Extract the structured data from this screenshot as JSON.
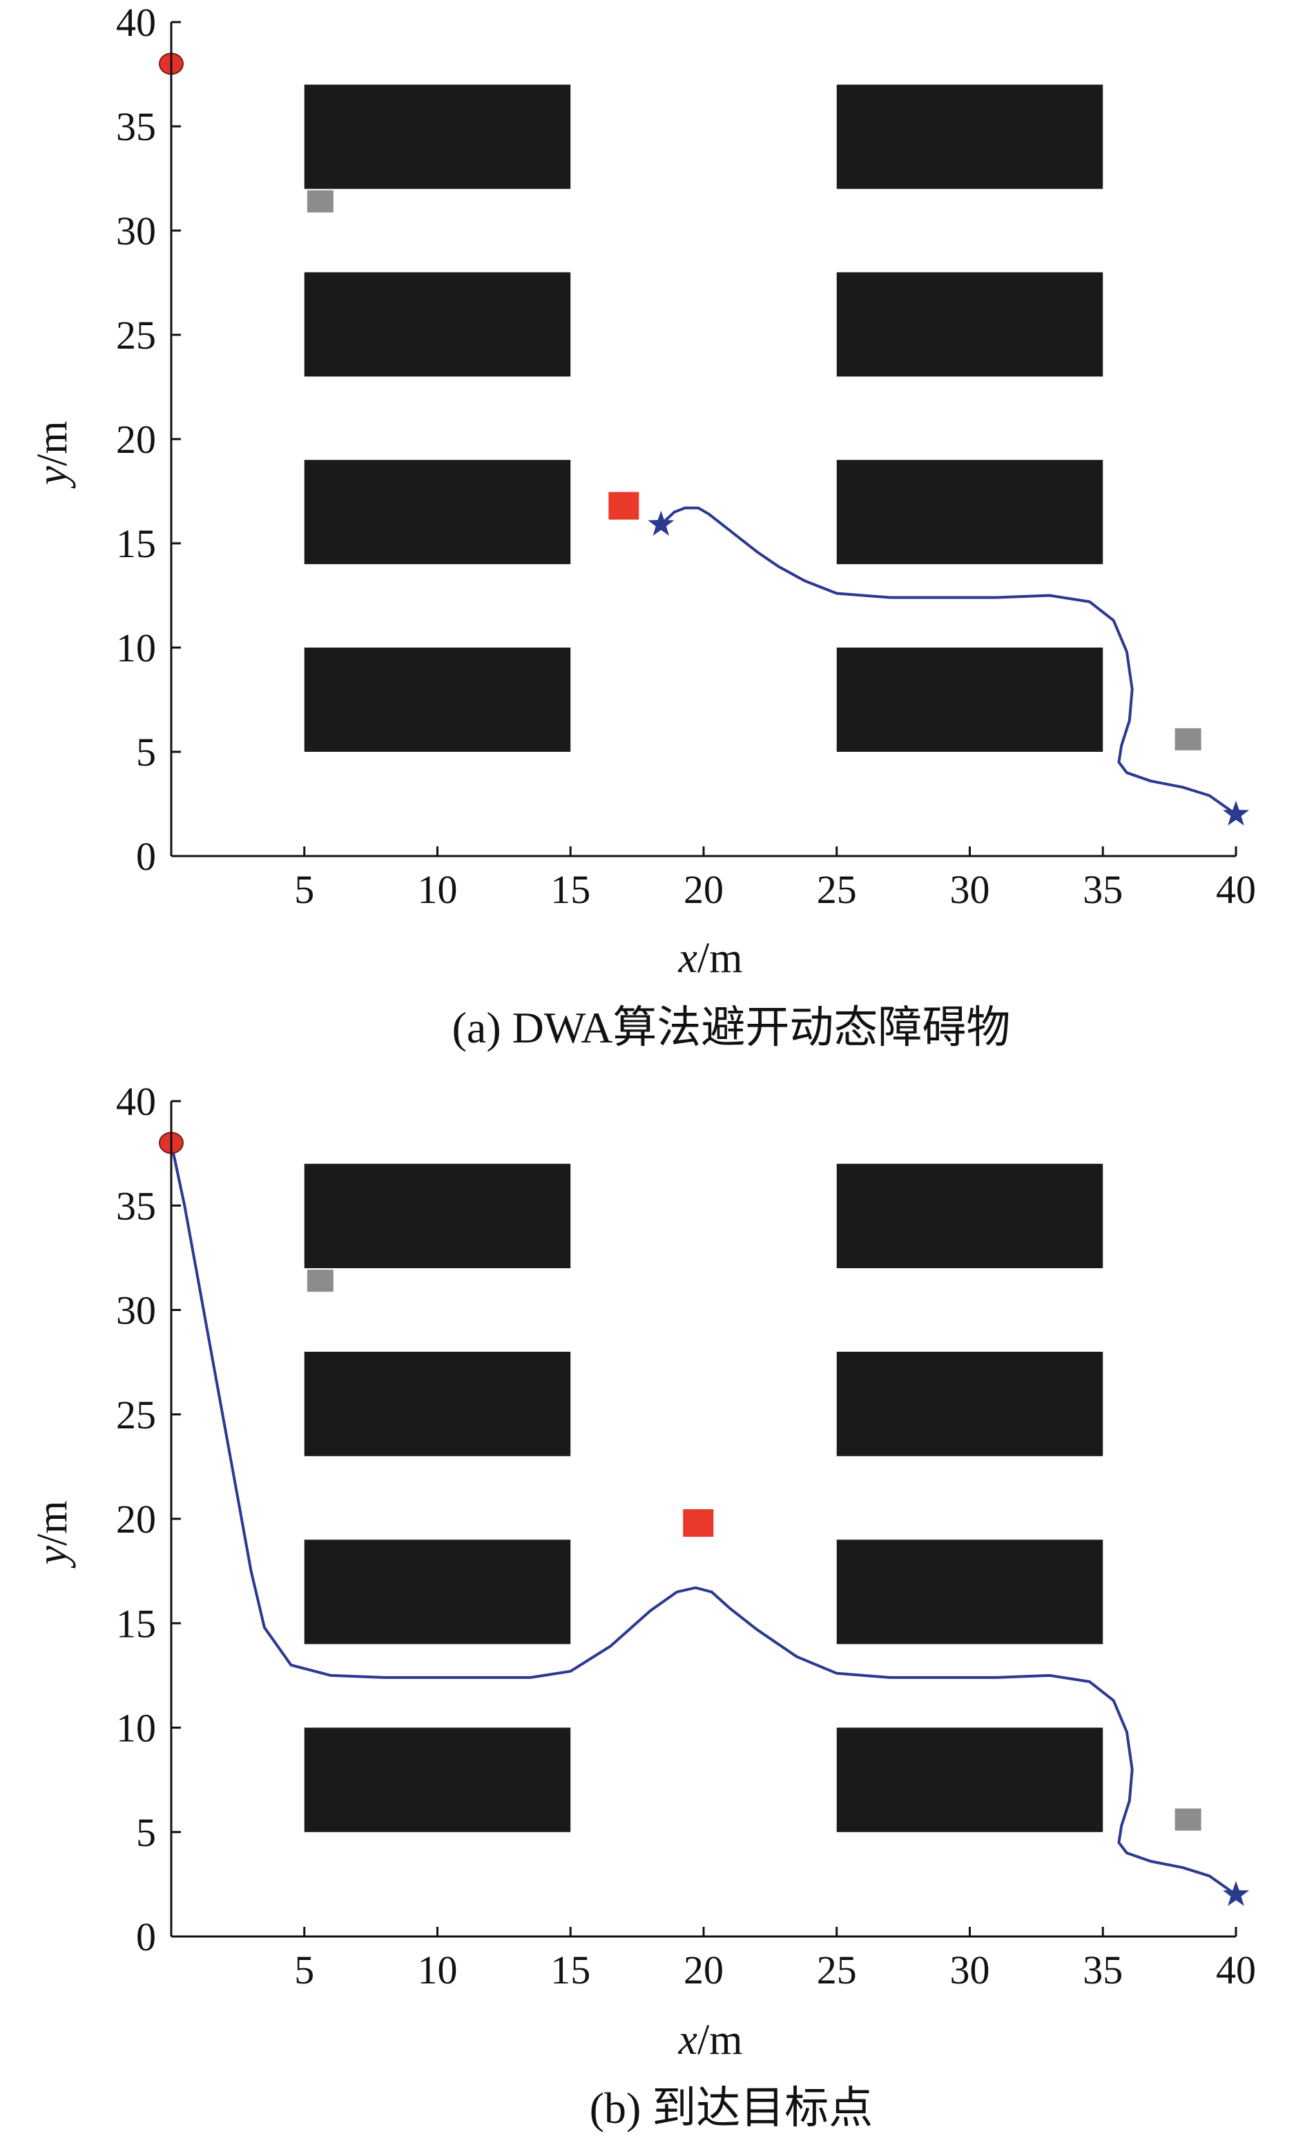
{
  "chart_data": [
    {
      "type": "scatter",
      "panel": "a",
      "caption": "(a) DWA算法避开动态障碍物",
      "xlabel": {
        "var": "x",
        "unit": "/m"
      },
      "ylabel": {
        "var": "y",
        "unit": "/m"
      },
      "xlim": [
        0,
        40
      ],
      "ylim": [
        0,
        40
      ],
      "xticks": [
        5,
        10,
        15,
        20,
        25,
        30,
        35,
        40
      ],
      "yticks": [
        0,
        5,
        10,
        15,
        20,
        25,
        30,
        35,
        40
      ],
      "grid": false,
      "colors": {
        "obstacle": "#1a1a1a",
        "path": "#2b3990",
        "start": "#e0342a",
        "dynamic_obstacle": "#e8392b",
        "static_marker": "#8c8c8c",
        "robot": "#2b3990"
      },
      "obstacles": [
        {
          "x0": 5,
          "x1": 15,
          "y0": 32,
          "y1": 37
        },
        {
          "x0": 5,
          "x1": 15,
          "y0": 23,
          "y1": 28
        },
        {
          "x0": 5,
          "x1": 15,
          "y0": 14,
          "y1": 19
        },
        {
          "x0": 5,
          "x1": 15,
          "y0": 5,
          "y1": 10
        },
        {
          "x0": 25,
          "x1": 35,
          "y0": 32,
          "y1": 37
        },
        {
          "x0": 25,
          "x1": 35,
          "y0": 23,
          "y1": 28
        },
        {
          "x0": 25,
          "x1": 35,
          "y0": 14,
          "y1": 19
        },
        {
          "x0": 25,
          "x1": 35,
          "y0": 5,
          "y1": 10
        }
      ],
      "start_point": {
        "x": 0,
        "y": 38
      },
      "goal_star": {
        "x": 40,
        "y": 2
      },
      "robot_star": {
        "x": 18.4,
        "y": 15.9
      },
      "dynamic_obstacle": {
        "x": 17.0,
        "y": 16.8
      },
      "static_markers": [
        {
          "x": 5.6,
          "y": 31.4
        },
        {
          "x": 38.2,
          "y": 5.6
        }
      ],
      "path": {
        "x": [
          18.4,
          18.9,
          19.3,
          19.8,
          20.2,
          20.7,
          21.3,
          22.0,
          22.8,
          23.8,
          25.0,
          27.0,
          29.0,
          31.0,
          33.0,
          34.5,
          35.4,
          35.9,
          36.1,
          36.0,
          35.7,
          35.6,
          35.9,
          36.8,
          38.0,
          39.0,
          40.0
        ],
        "y": [
          15.9,
          16.5,
          16.7,
          16.7,
          16.4,
          15.9,
          15.3,
          14.6,
          13.9,
          13.2,
          12.6,
          12.4,
          12.4,
          12.4,
          12.5,
          12.2,
          11.3,
          9.8,
          8.0,
          6.5,
          5.3,
          4.5,
          4.0,
          3.6,
          3.3,
          2.9,
          2.0
        ]
      }
    },
    {
      "type": "scatter",
      "panel": "b",
      "caption": "(b) 到达目标点",
      "xlabel": {
        "var": "x",
        "unit": "/m"
      },
      "ylabel": {
        "var": "y",
        "unit": "/m"
      },
      "xlim": [
        0,
        40
      ],
      "ylim": [
        0,
        40
      ],
      "xticks": [
        5,
        10,
        15,
        20,
        25,
        30,
        35,
        40
      ],
      "yticks": [
        0,
        5,
        10,
        15,
        20,
        25,
        30,
        35,
        40
      ],
      "grid": false,
      "colors": {
        "obstacle": "#1a1a1a",
        "path": "#2b3990",
        "start": "#e0342a",
        "dynamic_obstacle": "#e8392b",
        "static_marker": "#8c8c8c",
        "robot": "#2b3990"
      },
      "obstacles": [
        {
          "x0": 5,
          "x1": 15,
          "y0": 32,
          "y1": 37
        },
        {
          "x0": 5,
          "x1": 15,
          "y0": 23,
          "y1": 28
        },
        {
          "x0": 5,
          "x1": 15,
          "y0": 14,
          "y1": 19
        },
        {
          "x0": 5,
          "x1": 15,
          "y0": 5,
          "y1": 10
        },
        {
          "x0": 25,
          "x1": 35,
          "y0": 32,
          "y1": 37
        },
        {
          "x0": 25,
          "x1": 35,
          "y0": 23,
          "y1": 28
        },
        {
          "x0": 25,
          "x1": 35,
          "y0": 14,
          "y1": 19
        },
        {
          "x0": 25,
          "x1": 35,
          "y0": 5,
          "y1": 10
        }
      ],
      "start_point": {
        "x": 0,
        "y": 38
      },
      "goal_star": {
        "x": 40,
        "y": 2
      },
      "robot_star": null,
      "dynamic_obstacle": {
        "x": 19.8,
        "y": 19.8
      },
      "static_markers": [
        {
          "x": 5.6,
          "y": 31.4
        },
        {
          "x": 38.2,
          "y": 5.6
        }
      ],
      "path": {
        "x": [
          0.0,
          0.5,
          1.0,
          1.5,
          2.0,
          2.5,
          3.0,
          3.5,
          4.5,
          6.0,
          8.0,
          10.0,
          12.0,
          13.5,
          15.0,
          16.5,
          18.0,
          19.0,
          19.7,
          20.3,
          21.0,
          22.0,
          23.5,
          25.0,
          27.0,
          29.0,
          31.0,
          33.0,
          34.5,
          35.4,
          35.9,
          36.1,
          36.0,
          35.7,
          35.6,
          35.9,
          36.8,
          38.0,
          39.0,
          40.0
        ],
        "y": [
          38.0,
          35.0,
          31.5,
          28.0,
          24.5,
          21.0,
          17.5,
          14.8,
          13.0,
          12.5,
          12.4,
          12.4,
          12.4,
          12.4,
          12.7,
          13.9,
          15.6,
          16.5,
          16.7,
          16.5,
          15.7,
          14.7,
          13.4,
          12.6,
          12.4,
          12.4,
          12.4,
          12.5,
          12.2,
          11.3,
          9.8,
          8.0,
          6.5,
          5.3,
          4.5,
          4.0,
          3.6,
          3.3,
          2.9,
          2.0
        ]
      }
    }
  ]
}
